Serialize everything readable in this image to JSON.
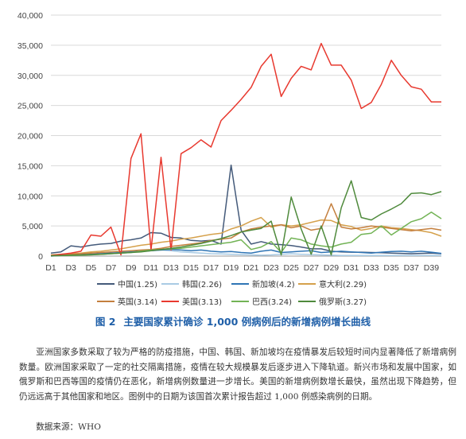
{
  "chart_data": {
    "type": "line",
    "x": [
      "D1",
      "D2",
      "D3",
      "D4",
      "D5",
      "D6",
      "D7",
      "D8",
      "D9",
      "D10",
      "D11",
      "D12",
      "D13",
      "D14",
      "D15",
      "D16",
      "D17",
      "D18",
      "D19",
      "D20",
      "D21",
      "D22",
      "D23",
      "D24",
      "D25",
      "D26",
      "D27",
      "D28",
      "D29",
      "D30",
      "D31",
      "D32",
      "D33",
      "D34",
      "D35",
      "D36",
      "D37",
      "D38",
      "D39",
      "D40"
    ],
    "x_tick_labels": [
      "D1",
      "D3",
      "D5",
      "D7",
      "D9",
      "D11",
      "D13",
      "D15",
      "D17",
      "D19",
      "D21",
      "D23",
      "D25",
      "D27",
      "D29",
      "D31",
      "D33",
      "D35",
      "D37",
      "D39"
    ],
    "ylim": [
      0,
      40000
    ],
    "y_ticks": [
      "0",
      "5,000",
      "10,000",
      "15,000",
      "20,000",
      "25,000",
      "30,000",
      "35,000",
      "40,000"
    ],
    "y_tick_values": [
      0,
      5000,
      10000,
      15000,
      20000,
      25000,
      30000,
      35000,
      40000
    ],
    "grid": true,
    "legend_position": "bottom",
    "series": [
      {
        "name": "中国(1.25)",
        "color": "#445a7a",
        "values": [
          500,
          700,
          1700,
          1500,
          1800,
          2000,
          2100,
          2500,
          2700,
          3000,
          3900,
          3800,
          3100,
          3000,
          2600,
          2500,
          2600,
          2000,
          15100,
          4300,
          2000,
          2400,
          2000,
          1900,
          1750,
          1500,
          1200,
          1200,
          800,
          700,
          650,
          650,
          600,
          550,
          500,
          450,
          400,
          450,
          500,
          400
        ]
      },
      {
        "name": "韩国(2.26)",
        "color": "#a9cbe4",
        "values": [
          100,
          100,
          200,
          300,
          400,
          500,
          500,
          600,
          700,
          800,
          900,
          1000,
          900,
          700,
          600,
          500,
          400,
          350,
          300,
          250,
          200,
          150,
          200,
          300,
          400,
          300,
          250,
          200,
          150,
          100,
          100,
          100,
          100,
          100,
          100,
          100,
          100,
          100,
          100,
          100
        ]
      },
      {
        "name": "新加坡(4.2)",
        "color": "#2f75b5",
        "values": [
          0,
          100,
          150,
          200,
          300,
          400,
          500,
          600,
          700,
          800,
          900,
          1000,
          1100,
          1000,
          900,
          1000,
          800,
          700,
          750,
          600,
          500,
          800,
          1000,
          600,
          700,
          800,
          900,
          600,
          700,
          800,
          700,
          600,
          500,
          650,
          750,
          800,
          700,
          800,
          650,
          450
        ]
      },
      {
        "name": "意大利(2.29)",
        "color": "#d5a14c",
        "values": [
          200,
          300,
          400,
          500,
          700,
          800,
          1000,
          1200,
          1500,
          1800,
          2000,
          2300,
          2500,
          2800,
          3000,
          3300,
          3600,
          3800,
          4500,
          5000,
          5800,
          6400,
          4800,
          5200,
          5000,
          5200,
          5600,
          6000,
          5900,
          5200,
          4900,
          4300,
          4600,
          5000,
          4700,
          4600,
          4400,
          4200,
          3900,
          3300
        ]
      },
      {
        "name": "英国(3.14)",
        "color": "#c47f3e",
        "values": [
          100,
          200,
          300,
          400,
          500,
          600,
          700,
          800,
          900,
          1000,
          1100,
          1300,
          1600,
          1800,
          2000,
          2200,
          2600,
          2800,
          3000,
          4000,
          4500,
          4800,
          5000,
          5200,
          4700,
          5000,
          4300,
          4600,
          8700,
          4800,
          4500,
          4700,
          5000,
          4800,
          4600,
          4400,
          4200,
          4400,
          4600,
          4300
        ]
      },
      {
        "name": "美国(3.13)",
        "color": "#e8392f",
        "values": [
          100,
          300,
          500,
          800,
          3500,
          3300,
          4800,
          200,
          16200,
          20300,
          1000,
          16400,
          1000,
          17000,
          18000,
          19300,
          18100,
          22500,
          24200,
          26000,
          28000,
          31500,
          33500,
          26500,
          29500,
          31500,
          30900,
          35300,
          31700,
          31700,
          29200,
          24500,
          25500,
          28500,
          32500,
          30000,
          28100,
          27700,
          25600,
          25600
        ]
      },
      {
        "name": "巴西(3.24)",
        "color": "#72b355",
        "values": [
          50,
          80,
          100,
          150,
          200,
          300,
          400,
          500,
          600,
          800,
          1000,
          1100,
          1200,
          1300,
          1500,
          1700,
          1900,
          2100,
          2300,
          2700,
          1100,
          1500,
          2400,
          600,
          3000,
          2700,
          2000,
          1700,
          1500,
          2000,
          2300,
          3600,
          3800,
          5000,
          3500,
          4600,
          5700,
          6200,
          7300,
          6200
        ]
      },
      {
        "name": "俄罗斯(3.27)",
        "color": "#4f8a3c",
        "values": [
          50,
          100,
          150,
          200,
          250,
          300,
          400,
          500,
          600,
          700,
          900,
          1100,
          1300,
          1500,
          1800,
          2100,
          2500,
          2900,
          3400,
          4000,
          4300,
          4600,
          5800,
          200,
          9800,
          4500,
          300,
          5000,
          200,
          8000,
          12500,
          6400,
          6000,
          7000,
          7800,
          8700,
          10400,
          10500,
          10200,
          10700
        ]
      }
    ]
  },
  "caption": {
    "figure_number": "图 2",
    "title": "主要国家累计确诊 1,000 例病例后的新增病例增长曲线"
  },
  "body_text": "亚洲国家多数采取了较为严格的防疫措施，中国、韩国、新加坡均在疫情暴发后较短时间内显著降低了新增病例数量。欧洲国家采取了一定的社交隔离措施，疫情在较大规模暴发后逐步进入下降轨道。新兴市场和发展中国家，如俄罗斯和巴西等国的疫情仍在恶化，新增病例数量进一步增长。美国的新增病例数增长最快，虽然出现下降趋势，但仍远远高于其他国家和地区。图例中的日期为该国首次累计报告超过 1,000 例感染病例的日期。",
  "source": "数据来源：WHO"
}
